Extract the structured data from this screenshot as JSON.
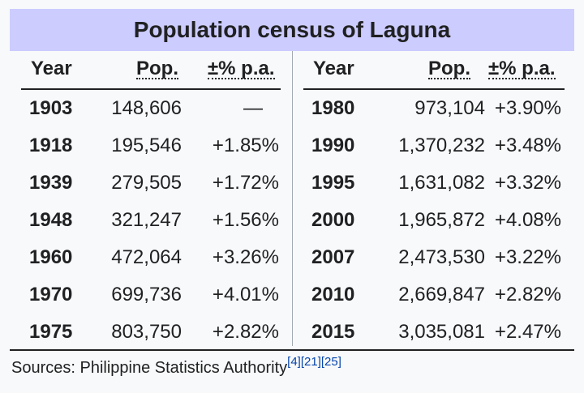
{
  "table": {
    "title": "Population census of Laguna",
    "headers": {
      "year": "Year",
      "pop": "Pop.",
      "pct": "±% p.a."
    },
    "left_rows": [
      {
        "year": "1903",
        "pop": "148,606",
        "pct": "—"
      },
      {
        "year": "1918",
        "pop": "195,546",
        "pct": "+1.85%"
      },
      {
        "year": "1939",
        "pop": "279,505",
        "pct": "+1.72%"
      },
      {
        "year": "1948",
        "pop": "321,247",
        "pct": "+1.56%"
      },
      {
        "year": "1960",
        "pop": "472,064",
        "pct": "+3.26%"
      },
      {
        "year": "1970",
        "pop": "699,736",
        "pct": "+4.01%"
      },
      {
        "year": "1975",
        "pop": "803,750",
        "pct": "+2.82%"
      }
    ],
    "right_rows": [
      {
        "year": "1980",
        "pop": "973,104",
        "pct": "+3.90%"
      },
      {
        "year": "1990",
        "pop": "1,370,232",
        "pct": "+3.48%"
      },
      {
        "year": "1995",
        "pop": "1,631,082",
        "pct": "+3.32%"
      },
      {
        "year": "2000",
        "pop": "1,965,872",
        "pct": "+4.08%"
      },
      {
        "year": "2007",
        "pop": "2,473,530",
        "pct": "+3.22%"
      },
      {
        "year": "2010",
        "pop": "2,669,847",
        "pct": "+2.82%"
      },
      {
        "year": "2015",
        "pop": "3,035,081",
        "pct": "+2.47%"
      }
    ],
    "source": {
      "text": "Sources: Philippine Statistics Authority",
      "refs": [
        "[4]",
        "[21]",
        "[25]"
      ]
    }
  }
}
